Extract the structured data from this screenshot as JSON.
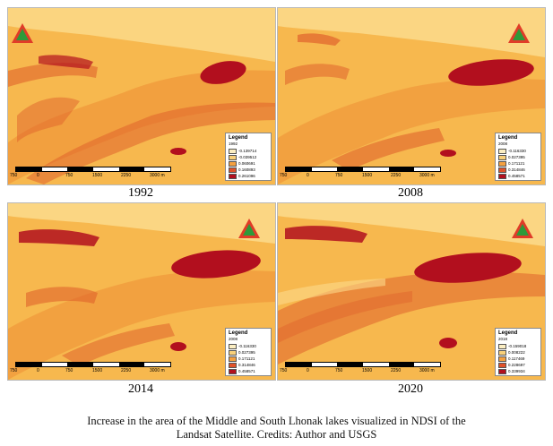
{
  "panels": [
    {
      "year": "1992",
      "legend": {
        "title": "Legend",
        "layer": "1992",
        "entries": [
          {
            "value": "-0.139714",
            "color": "#fbeec2"
          },
          {
            "value": "-0.039512",
            "color": "#f8d07a"
          },
          {
            "value": "0.060691",
            "color": "#f4a040"
          },
          {
            "value": "0.160893",
            "color": "#e0522a"
          },
          {
            "value": "0.261096",
            "color": "#b20f1e"
          }
        ]
      },
      "scale_labels": [
        "750",
        "0",
        "750",
        "1500",
        "2250",
        "3000 m"
      ]
    },
    {
      "year": "2008",
      "legend": {
        "title": "Legend",
        "layer": "2008",
        "entries": [
          {
            "value": "-0.116330",
            "color": "#fbeec2"
          },
          {
            "value": "0.027395",
            "color": "#f8d07a"
          },
          {
            "value": "0.171121",
            "color": "#f4a040"
          },
          {
            "value": "0.314846",
            "color": "#e0522a"
          },
          {
            "value": "0.458571",
            "color": "#b20f1e"
          }
        ]
      },
      "scale_labels": [
        "750",
        "0",
        "750",
        "1500",
        "2250",
        "3000 m"
      ]
    },
    {
      "year": "2014",
      "legend": {
        "title": "Legend",
        "layer": "2008",
        "entries": [
          {
            "value": "-0.116330",
            "color": "#fbeec2"
          },
          {
            "value": "0.027395",
            "color": "#f8d07a"
          },
          {
            "value": "0.171121",
            "color": "#f4a040"
          },
          {
            "value": "0.314846",
            "color": "#e0522a"
          },
          {
            "value": "0.458571",
            "color": "#b20f1e"
          }
        ]
      },
      "scale_labels": [
        "750",
        "0",
        "750",
        "1500",
        "2250",
        "3000 m"
      ]
    },
    {
      "year": "2020",
      "legend": {
        "title": "Legend",
        "layer": "2018",
        "entries": [
          {
            "value": "-0.159018",
            "color": "#fbeec2"
          },
          {
            "value": "0.008222",
            "color": "#f8d07a"
          },
          {
            "value": "0.117469",
            "color": "#f4a040"
          },
          {
            "value": "0.228697",
            "color": "#e0522a"
          },
          {
            "value": "0.339934",
            "color": "#b20f1e"
          }
        ]
      },
      "scale_labels": [
        "750",
        "0",
        "750",
        "1500",
        "2250",
        "3000 m"
      ]
    }
  ],
  "caption": {
    "line1": "Increase in the area of the Middle and South Lhonak lakes visualized in NDSI of the",
    "line2": "Landsat Satellite.  Credits: Author and USGS"
  },
  "colors": {
    "terrain_base": "#f7b84e",
    "terrain_light": "#fbd98a",
    "terrain_mid": "#f09a3c",
    "terrain_dark": "#e0622c",
    "lake": "#b20f1e",
    "north_arrow_border": "#e03c28",
    "north_arrow_fill": "#2e9a3a"
  },
  "icons": {
    "north_arrow": "north-arrow-triangle-icon"
  }
}
